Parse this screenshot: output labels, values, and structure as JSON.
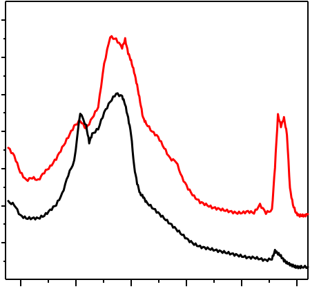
{
  "chart_data": {
    "type": "line",
    "xlim": [
      0,
      100
    ],
    "ylim": [
      0,
      100
    ],
    "grid": false,
    "series": [
      {
        "color": "#ff0000",
        "x": [
          0,
          2,
          4,
          6,
          8,
          10,
          12,
          14,
          16,
          18,
          20,
          22,
          24,
          26,
          28,
          30,
          32,
          34,
          36,
          38,
          39,
          40,
          41,
          42,
          43,
          44,
          45,
          46,
          48,
          50,
          52,
          54,
          56,
          58,
          60,
          62,
          64,
          66,
          68,
          70,
          72,
          74,
          76,
          78,
          80,
          82,
          84,
          86,
          88,
          89,
          90,
          91,
          92,
          93,
          94,
          95,
          96,
          97,
          98,
          99,
          100
        ],
        "y": [
          47,
          44,
          38,
          35,
          36,
          35,
          38,
          40,
          43,
          47,
          51,
          55,
          57,
          54,
          58,
          62,
          78,
          88,
          87,
          84,
          87,
          82,
          79,
          75,
          70,
          64,
          58,
          56,
          53,
          51,
          47,
          43,
          42,
          36,
          32,
          29,
          27,
          26,
          25,
          24.5,
          24,
          23.5,
          23,
          23,
          23.5,
          23,
          26,
          23,
          24,
          40,
          59,
          55,
          58,
          52,
          32,
          26,
          23,
          22,
          22,
          22,
          22.5
        ]
      },
      {
        "color": "#000000",
        "x": [
          0,
          2,
          4,
          6,
          8,
          10,
          12,
          14,
          16,
          18,
          20,
          22,
          24,
          26,
          27,
          28,
          30,
          32,
          34,
          36,
          38,
          39,
          40,
          41,
          42,
          43,
          44,
          45,
          46,
          48,
          50,
          52,
          54,
          56,
          58,
          60,
          62,
          64,
          66,
          68,
          70,
          72,
          74,
          76,
          78,
          80,
          82,
          84,
          86,
          88,
          89,
          90,
          91,
          92,
          93,
          94,
          95,
          96,
          97,
          98,
          100
        ],
        "y": [
          27,
          26,
          22,
          21,
          21,
          21,
          22,
          24,
          26,
          30,
          37,
          42,
          60,
          55,
          49,
          52,
          54,
          60,
          64,
          67,
          66,
          63,
          58,
          52,
          40,
          34,
          30,
          29,
          27,
          25,
          23,
          21,
          19,
          17,
          15,
          13,
          11.5,
          10.5,
          10,
          9.5,
          9,
          8.5,
          8,
          7.5,
          7,
          6.5,
          6.5,
          6,
          5.5,
          6,
          9,
          8,
          7,
          5.5,
          4.5,
          4,
          3.5,
          3,
          3,
          3,
          3
        ]
      }
    ]
  }
}
